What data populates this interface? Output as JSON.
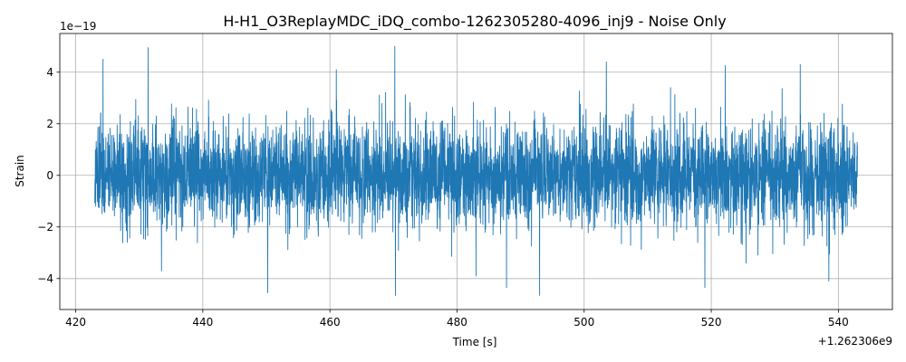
{
  "chart_data": {
    "type": "line",
    "title": "H-H1_O3ReplayMDC_iDQ_combo-1262305280-4096_inj9 - Noise Only",
    "xlabel": "Time [s]",
    "ylabel": "Strain",
    "x_offset_label": "+1.262306e9",
    "y_scale_label": "1e−19",
    "xlim": [
      417.5,
      548.5
    ],
    "ylim": [
      -5.2,
      5.5
    ],
    "x_ticks": [
      420,
      440,
      460,
      480,
      500,
      520,
      540
    ],
    "x_tick_labels": [
      "420",
      "440",
      "460",
      "480",
      "500",
      "520",
      "540"
    ],
    "y_ticks": [
      -4,
      -2,
      0,
      2,
      4
    ],
    "y_tick_labels": [
      "−4",
      "−2",
      "0",
      "2",
      "4"
    ],
    "grid": true,
    "series": [
      {
        "color": "#1f77b4",
        "x_start": 423.0,
        "x_end": 543.0,
        "peaks": [
          {
            "x": 424.3,
            "y": 4.5
          },
          {
            "x": 431.4,
            "y": 4.95
          },
          {
            "x": 450.2,
            "y": -4.55
          },
          {
            "x": 470.2,
            "y": 5.0
          },
          {
            "x": 470.3,
            "y": -4.65
          },
          {
            "x": 493.0,
            "y": -4.65
          },
          {
            "x": 487.8,
            "y": -4.35
          },
          {
            "x": 519.0,
            "y": -4.35
          },
          {
            "x": 522.2,
            "y": 4.25
          },
          {
            "x": 503.5,
            "y": 4.4
          },
          {
            "x": 538.5,
            "y": -4.1
          },
          {
            "x": 534.0,
            "y": 4.3
          },
          {
            "x": 433.5,
            "y": -3.7
          },
          {
            "x": 461.0,
            "y": 4.1
          },
          {
            "x": 483.0,
            "y": -3.9
          }
        ]
      }
    ]
  }
}
